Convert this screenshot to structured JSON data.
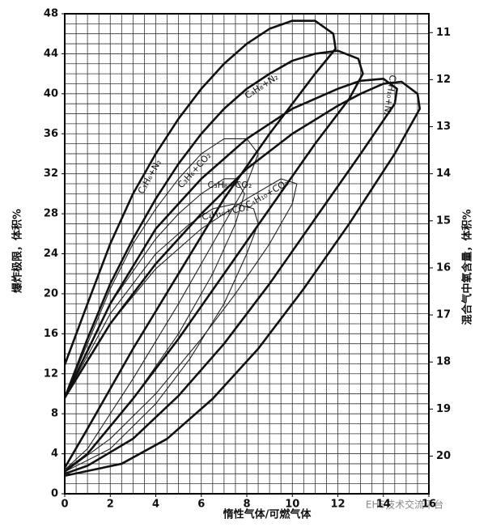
{
  "chart_data": {
    "type": "line",
    "xlabel": "惰性气体/可燃气体",
    "ylabel": "爆炸极限，体积%",
    "y2label": "混合气中氧含量，体积%",
    "watermark": "EHS技术交流平台",
    "xlim": [
      0,
      16
    ],
    "xticks": [
      0,
      2,
      4,
      6,
      8,
      10,
      12,
      14,
      16
    ],
    "ylim": [
      0,
      48
    ],
    "yticks": [
      0,
      4,
      8,
      12,
      16,
      20,
      24,
      28,
      32,
      36,
      40,
      44,
      48
    ],
    "y2lim": [
      20.8,
      10.6
    ],
    "y2ticks": [
      11,
      12,
      13,
      14,
      15,
      16,
      17,
      18,
      19,
      20
    ],
    "xgrid": [
      0,
      0.5,
      1,
      1.5,
      2,
      2.5,
      3,
      3.5,
      4,
      4.5,
      5,
      5.5,
      6,
      6.5,
      7,
      7.5,
      8,
      8.5,
      9,
      9.5,
      10,
      10.5,
      11,
      11.5,
      12,
      12.5,
      13,
      13.5,
      14,
      14.5,
      15,
      15.5,
      16
    ],
    "ygrid": [
      0,
      1,
      2,
      3,
      4,
      5,
      6,
      7,
      8,
      9,
      10,
      11,
      12,
      13,
      14,
      15,
      16,
      17,
      18,
      19,
      20,
      21,
      22,
      23,
      24,
      25,
      26,
      27,
      28,
      29,
      30,
      31,
      32,
      33,
      34,
      35,
      36,
      37,
      38,
      39,
      40,
      41,
      42,
      43,
      44,
      45,
      46,
      47,
      48
    ],
    "grid": true,
    "series": [
      {
        "name": "C₃H₆+N₂",
        "color": "#111111",
        "style": "thick",
        "x": [
          0,
          1,
          2,
          3,
          4,
          5,
          6,
          7,
          8,
          9,
          10,
          11,
          11.8,
          11.9,
          11,
          9,
          7,
          5,
          3,
          1,
          0
        ],
        "values": [
          12.9,
          19,
          25,
          30,
          34,
          37.5,
          40.5,
          43,
          45,
          46.5,
          47.3,
          47.3,
          46,
          44.5,
          42,
          36,
          29.5,
          22,
          14.5,
          6.5,
          2.6
        ]
      },
      {
        "name": "C₃H₆+CO₂",
        "color": "#222222",
        "style": "thin",
        "x": [
          0,
          1,
          2,
          3,
          4,
          5,
          6,
          7,
          8,
          8.5,
          8,
          6.5,
          5,
          3,
          1,
          0
        ],
        "values": [
          9.6,
          15,
          20.5,
          25,
          28.5,
          31.5,
          34,
          35.5,
          35.5,
          34,
          31,
          25,
          19,
          11.5,
          4.5,
          2.4
        ]
      },
      {
        "name": "C₃H₈+CO₂",
        "color": "#222222",
        "style": "thin",
        "x": [
          0,
          2,
          4,
          5,
          6,
          7,
          7.5,
          7.9,
          7.5,
          6.5,
          5,
          3,
          1,
          0
        ],
        "values": [
          9.6,
          19,
          25.5,
          28,
          30,
          31.5,
          31.5,
          30,
          27,
          22,
          16,
          9.5,
          4,
          2.4
        ]
      },
      {
        "name": "C₄H₁₀+CO₂",
        "color": "#222222",
        "style": "thin",
        "x": [
          0,
          2,
          4,
          5.5,
          6.5,
          7.5,
          8.3,
          8.5,
          8,
          7,
          5.5,
          4,
          2,
          0
        ],
        "values": [
          9.6,
          18,
          24,
          27,
          28.5,
          29,
          28.5,
          27,
          24,
          19,
          13.5,
          9,
          4.5,
          2.2
        ]
      },
      {
        "name": "C₄H₁₀+CO₂",
        "color": "#222222",
        "style": "thin",
        "x": [
          0,
          2,
          4,
          6,
          8,
          9.5,
          10.2,
          10,
          9,
          7.5,
          6,
          4,
          2,
          0
        ],
        "values": [
          9.6,
          17,
          22.5,
          26.5,
          29.5,
          31.5,
          31,
          29,
          25,
          20,
          15.5,
          10,
          5.5,
          2.2
        ]
      },
      {
        "name": "C₃H₈+N₂",
        "color": "#111111",
        "style": "thick",
        "x": [
          0,
          1,
          2,
          3,
          4,
          5,
          6,
          7,
          8,
          9,
          10,
          11,
          12,
          12.9,
          13.1,
          12.5,
          11,
          9,
          7,
          5,
          3,
          1,
          0
        ],
        "values": [
          9.6,
          15.5,
          21,
          25.5,
          29.5,
          33,
          36,
          38.5,
          40.5,
          42,
          43.3,
          44,
          44.3,
          43.5,
          42,
          39.5,
          35,
          28.5,
          22,
          15.5,
          9.5,
          4,
          2.2
        ]
      },
      {
        "name": "C₄H₁₀+N₂",
        "color": "#111111",
        "style": "thick",
        "x": [
          0,
          2,
          4,
          6,
          8,
          10,
          12,
          13,
          14,
          14.6,
          14.5,
          13,
          11,
          9,
          7,
          5,
          3,
          1,
          0
        ],
        "values": [
          9.6,
          19,
          26.5,
          31.5,
          35.5,
          38.5,
          40.5,
          41.3,
          41.5,
          40.5,
          39,
          34,
          27.5,
          21,
          15,
          9.8,
          5.5,
          2.8,
          2.0
        ]
      },
      {
        "color": "#111111",
        "style": "thick",
        "x": [
          0,
          2,
          4,
          6,
          8,
          10,
          12,
          13,
          14,
          14.8,
          15.5,
          15.6,
          14.5,
          12.5,
          10.5,
          8.5,
          6.5,
          4.5,
          2.5,
          0
        ],
        "values": [
          9.6,
          17,
          23,
          28,
          32.5,
          36,
          38.8,
          40,
          41,
          41.2,
          40,
          38.5,
          34,
          27,
          20.5,
          14.5,
          9.5,
          5.5,
          3,
          1.8
        ]
      }
    ]
  }
}
